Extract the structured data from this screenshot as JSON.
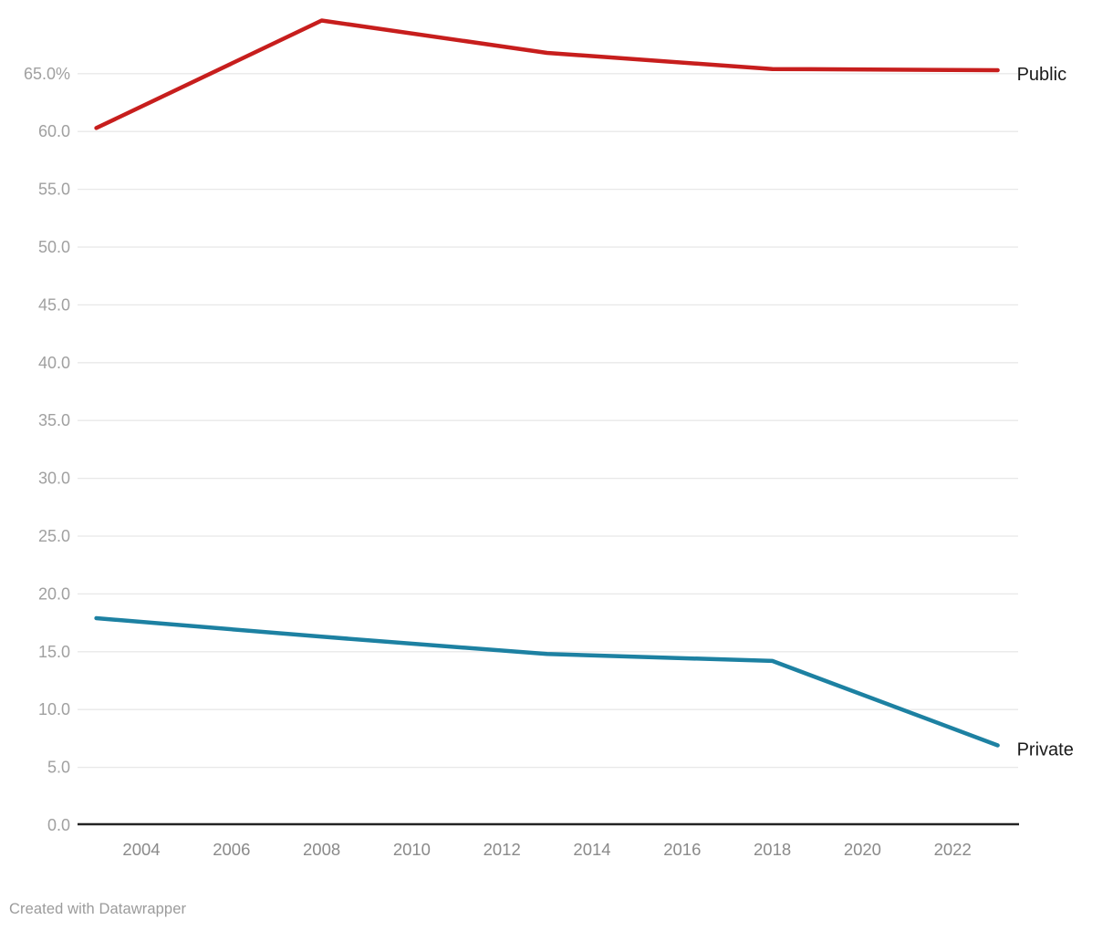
{
  "chart_data": {
    "type": "line",
    "x": [
      2003,
      2008,
      2013,
      2018,
      2023
    ],
    "series": [
      {
        "name": "Public",
        "values": [
          60.3,
          69.6,
          66.8,
          65.4,
          65.3
        ],
        "color": "#c71e1d"
      },
      {
        "name": "Private",
        "values": [
          17.9,
          16.3,
          14.8,
          14.2,
          6.9
        ],
        "color": "#1d81a2"
      }
    ],
    "title": "",
    "xlabel": "",
    "ylabel": "",
    "ylim": [
      0,
      70
    ],
    "yticks": [
      0,
      5,
      10,
      15,
      20,
      25,
      30,
      35,
      40,
      45,
      50,
      55,
      60,
      65
    ],
    "ytick_labels": [
      "0.0",
      "5.0",
      "10.0",
      "15.0",
      "20.0",
      "25.0",
      "30.0",
      "35.0",
      "40.0",
      "45.0",
      "50.0",
      "55.0",
      "60.0",
      "65.0%"
    ],
    "xticks": [
      2004,
      2006,
      2008,
      2010,
      2012,
      2014,
      2016,
      2018,
      2020,
      2022
    ],
    "xtick_labels": [
      "2004",
      "2006",
      "2008",
      "2010",
      "2012",
      "2014",
      "2016",
      "2018",
      "2020",
      "2022"
    ],
    "grid": true,
    "legend_position": "line-end-labels"
  },
  "colors": {
    "background": "#ffffff",
    "gridline": "#e8e8e8",
    "baseline": "#242424",
    "y_axis_text": "#a0a0a0",
    "x_axis_text": "#8a8a8a",
    "series_label_text": "#1a1a1a"
  },
  "footer": {
    "credit": "Created with Datawrapper"
  }
}
